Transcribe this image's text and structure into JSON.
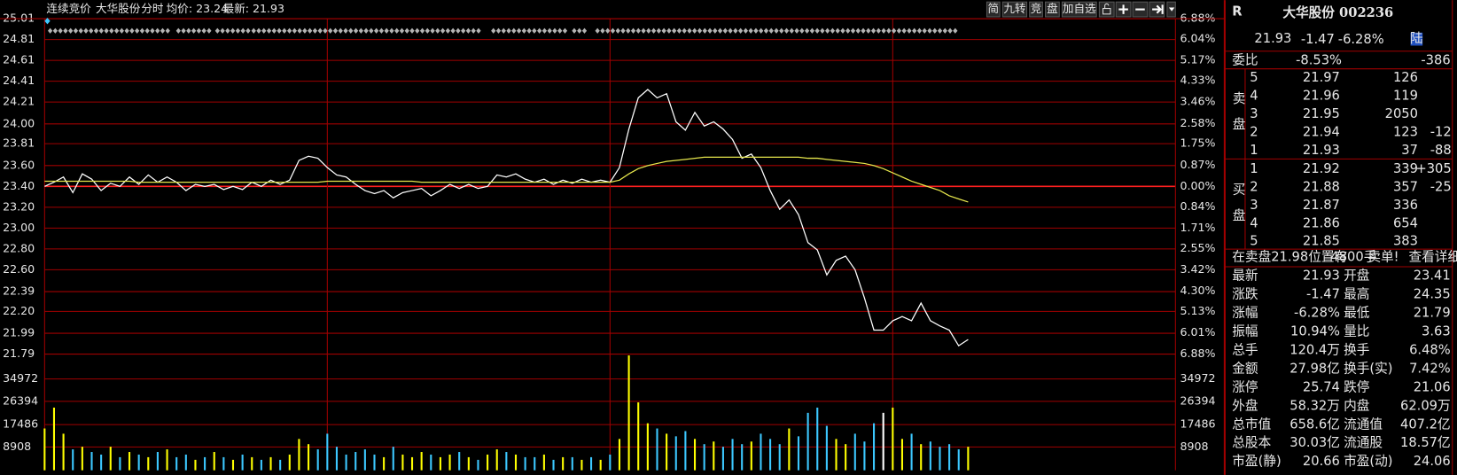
{
  "header": {
    "mode": "连续竞价",
    "name": "大华股份",
    "view": "分时",
    "avg": "均价: 23.24",
    "latest": "最新: 21.93"
  },
  "toolbar": {
    "buttons": [
      "简",
      "九转",
      "竞",
      "盘",
      "加自选"
    ]
  },
  "chart_data": [
    {
      "type": "line",
      "x": [
        0,
        2,
        4,
        6,
        8,
        10,
        12,
        14,
        16,
        18,
        20,
        22,
        24,
        26,
        28,
        30,
        32,
        34,
        36,
        38,
        40,
        42,
        44,
        46,
        48,
        50,
        52,
        54,
        56,
        58,
        60,
        62,
        64,
        66,
        68,
        70,
        72,
        74,
        76,
        78,
        80,
        82,
        84,
        86,
        88,
        90,
        92,
        94,
        96,
        98,
        100,
        102,
        104,
        106,
        108,
        110,
        112,
        114,
        116,
        118,
        120,
        122,
        124,
        126,
        128,
        130,
        132,
        134,
        136,
        138,
        140,
        142,
        144,
        146,
        148,
        150,
        152,
        154,
        156,
        158,
        160,
        162,
        164,
        166,
        168,
        170,
        172,
        174,
        176,
        178,
        180,
        182,
        184,
        186,
        188,
        190,
        192,
        194,
        196
      ],
      "xlim": [
        0,
        240
      ],
      "ylim": [
        21.79,
        25.01
      ],
      "yticks": [
        25.01,
        24.81,
        24.61,
        24.41,
        24.21,
        {
          "value": 24,
          "label": "24.00"
        },
        23.81,
        {
          "value": 23.6,
          "label": "23.60"
        },
        {
          "value": 23.4,
          "label": "23.40"
        },
        {
          "value": 23.2,
          "label": "23.20"
        },
        {
          "value": 23,
          "label": "23.00"
        },
        {
          "value": 22.8,
          "label": "22.80"
        },
        {
          "value": 22.6,
          "label": "22.60"
        },
        22.39,
        {
          "value": 22.2,
          "label": "22.20"
        },
        21.99,
        21.79
      ],
      "y2lim": [
        -6.88,
        6.88
      ],
      "y2ticks": [
        {
          "value": 6.88,
          "label": "6.88%"
        },
        {
          "value": 6.04,
          "label": "6.04%"
        },
        {
          "value": 5.17,
          "label": "5.17%"
        },
        {
          "value": 4.33,
          "label": "4.33%"
        },
        {
          "value": 3.46,
          "label": "3.46%"
        },
        {
          "value": 2.58,
          "label": "2.58%"
        },
        {
          "value": 1.75,
          "label": "1.75%"
        },
        {
          "value": 0.87,
          "label": "0.87%"
        },
        {
          "value": 0,
          "label": "0.00%"
        },
        {
          "value": -0.84,
          "label": "0.84%"
        },
        {
          "value": -1.71,
          "label": "1.71%"
        },
        {
          "value": -2.55,
          "label": "2.55%"
        },
        {
          "value": -3.42,
          "label": "3.42%"
        },
        {
          "value": -4.3,
          "label": "4.30%"
        },
        {
          "value": -5.13,
          "label": "5.13%"
        },
        {
          "value": -6.01,
          "label": "6.01%"
        },
        {
          "value": -6.88,
          "label": "6.88%"
        }
      ],
      "grid": true,
      "series": [
        {
          "color": "#ffffff",
          "values": [
            23.4,
            23.44,
            23.49,
            23.34,
            23.52,
            23.47,
            23.36,
            23.43,
            23.4,
            23.49,
            23.42,
            23.51,
            23.44,
            23.49,
            23.44,
            23.36,
            23.42,
            23.4,
            23.42,
            23.37,
            23.4,
            23.37,
            23.44,
            23.4,
            23.46,
            23.42,
            23.46,
            23.65,
            23.69,
            23.67,
            23.58,
            23.51,
            23.49,
            23.42,
            23.36,
            23.33,
            23.36,
            23.29,
            23.34,
            23.36,
            23.38,
            23.31,
            23.36,
            23.42,
            23.38,
            23.42,
            23.38,
            23.4,
            23.51,
            23.49,
            23.52,
            23.47,
            23.44,
            23.47,
            23.42,
            23.46,
            23.43,
            23.47,
            23.44,
            23.46,
            23.44,
            23.58,
            23.95,
            24.25,
            24.33,
            24.25,
            24.29,
            24.02,
            23.94,
            24.11,
            23.98,
            24.02,
            23.95,
            23.85,
            23.67,
            23.71,
            23.58,
            23.36,
            23.18,
            23.27,
            23.13,
            22.86,
            22.79,
            22.55,
            22.69,
            22.73,
            22.6,
            22.33,
            22.02,
            22.02,
            22.11,
            22.15,
            22.11,
            22.28,
            22.11,
            22.06,
            22.02,
            21.87,
            21.93
          ]
        },
        {
          "color": "#e6e64c",
          "values": [
            23.45,
            23.45,
            23.45,
            23.45,
            23.45,
            23.45,
            23.45,
            23.45,
            23.45,
            23.45,
            23.44,
            23.44,
            23.44,
            23.44,
            23.44,
            23.44,
            23.44,
            23.44,
            23.44,
            23.44,
            23.44,
            23.44,
            23.44,
            23.44,
            23.44,
            23.44,
            23.44,
            23.44,
            23.44,
            23.44,
            23.45,
            23.45,
            23.45,
            23.45,
            23.45,
            23.45,
            23.45,
            23.45,
            23.45,
            23.45,
            23.44,
            23.44,
            23.44,
            23.44,
            23.44,
            23.44,
            23.44,
            23.44,
            23.44,
            23.44,
            23.44,
            23.44,
            23.44,
            23.44,
            23.44,
            23.44,
            23.44,
            23.44,
            23.44,
            23.44,
            23.44,
            23.46,
            23.52,
            23.57,
            23.6,
            23.62,
            23.64,
            23.65,
            23.66,
            23.67,
            23.68,
            23.68,
            23.68,
            23.68,
            23.68,
            23.68,
            23.68,
            23.68,
            23.68,
            23.68,
            23.68,
            23.67,
            23.67,
            23.66,
            23.65,
            23.64,
            23.63,
            23.62,
            23.6,
            23.57,
            23.53,
            23.49,
            23.45,
            23.42,
            23.39,
            23.36,
            23.31,
            23.28,
            23.25
          ]
        }
      ]
    },
    {
      "type": "bar",
      "x": [
        0,
        2,
        4,
        6,
        8,
        10,
        12,
        14,
        16,
        18,
        20,
        22,
        24,
        26,
        28,
        30,
        32,
        34,
        36,
        38,
        40,
        42,
        44,
        46,
        48,
        50,
        52,
        54,
        56,
        58,
        60,
        62,
        64,
        66,
        68,
        70,
        72,
        74,
        76,
        78,
        80,
        82,
        84,
        86,
        88,
        90,
        92,
        94,
        96,
        98,
        100,
        102,
        104,
        106,
        108,
        110,
        112,
        114,
        116,
        118,
        120,
        122,
        124,
        126,
        128,
        130,
        132,
        134,
        136,
        138,
        140,
        142,
        144,
        146,
        148,
        150,
        152,
        154,
        156,
        158,
        160,
        162,
        164,
        166,
        168,
        170,
        172,
        174,
        176,
        178,
        180,
        182,
        184,
        186,
        188,
        190,
        192,
        194,
        196
      ],
      "xlim": [
        0,
        240
      ],
      "ylim": [
        0,
        44500
      ],
      "yticks": [
        8908,
        17486,
        26394,
        34972
      ],
      "values": [
        16000,
        24000,
        14000,
        8000,
        9000,
        7000,
        6000,
        9000,
        5000,
        7000,
        6000,
        5000,
        7000,
        8000,
        5000,
        6000,
        4000,
        5000,
        7000,
        5000,
        4000,
        6000,
        5000,
        4000,
        5000,
        4000,
        6000,
        12000,
        10000,
        8000,
        14000,
        9000,
        6000,
        7000,
        8000,
        6000,
        5000,
        9000,
        6000,
        5000,
        7000,
        6000,
        5000,
        6000,
        7000,
        5000,
        4000,
        6000,
        8000,
        7000,
        6000,
        5000,
        5000,
        6000,
        4000,
        5000,
        5000,
        4000,
        5000,
        4000,
        6000,
        12000,
        44000,
        26000,
        18000,
        16000,
        14000,
        13000,
        15000,
        12000,
        10000,
        11000,
        9000,
        12000,
        10000,
        11000,
        14000,
        12000,
        10000,
        16000,
        13000,
        22000,
        24000,
        17000,
        12000,
        10000,
        14000,
        11000,
        18000,
        22000,
        24000,
        12000,
        14000,
        10000,
        11000,
        9000,
        10000,
        8000,
        9000
      ]
    }
  ],
  "quote_panel": {
    "marker": "R",
    "title": "大华股份 002236",
    "price": "21.93",
    "change": "-1.47",
    "change_pct": "-6.28%",
    "badge": "陆",
    "ratio": {
      "label": "委比",
      "pct": "-8.53%",
      "diff": "-386"
    },
    "sell_label": "卖盘",
    "buy_label": "买盘",
    "sell": [
      {
        "level": "5",
        "price": "21.97",
        "volume": "126"
      },
      {
        "level": "4",
        "price": "21.96",
        "volume": "119"
      },
      {
        "level": "3",
        "price": "21.95",
        "volume": "2050"
      },
      {
        "level": "2",
        "price": "21.94",
        "volume": "123",
        "delta": "-12"
      },
      {
        "level": "1",
        "price": "21.93",
        "volume": "37",
        "delta": "-88"
      }
    ],
    "buy": [
      {
        "level": "1",
        "price": "21.92",
        "volume": "339",
        "delta": "+305"
      },
      {
        "level": "2",
        "price": "21.88",
        "volume": "357",
        "delta": "-25"
      },
      {
        "level": "3",
        "price": "21.87",
        "volume": "336"
      },
      {
        "level": "4",
        "price": "21.86",
        "volume": "654"
      },
      {
        "level": "5",
        "price": "21.85",
        "volume": "383"
      }
    ],
    "notice": {
      "text": "在卖盘21.98位置有",
      "amount": "4800手",
      "alert": "卖单!",
      "link": "查看详细"
    },
    "stats": [
      [
        {
          "label": "最新",
          "value": "21.93",
          "color": "#00e600"
        },
        {
          "label": "开盘",
          "value": "23.41",
          "color": "#ff3232"
        }
      ],
      [
        {
          "label": "涨跌",
          "value": "-1.47",
          "color": "#00e600"
        },
        {
          "label": "最高",
          "value": "24.35",
          "color": "#ff3232"
        }
      ],
      [
        {
          "label": "涨幅",
          "value": "-6.28%",
          "color": "#00e600"
        },
        {
          "label": "最低",
          "value": "21.79",
          "color": "#00e600"
        }
      ],
      [
        {
          "label": "振幅",
          "value": "10.94%",
          "color": "#3cc8ff"
        },
        {
          "label": "量比",
          "value": "3.63",
          "color": "#ff3232"
        }
      ],
      [
        {
          "label": "总手",
          "value": "120.4万",
          "color": "#3cc8ff"
        },
        {
          "label": "换手",
          "value": "6.48%",
          "color": "#3cc8ff"
        }
      ],
      [
        {
          "label": "金额",
          "value": "27.98亿",
          "color": "#3cc8ff"
        },
        {
          "label": "换手(实)",
          "value": "7.42%",
          "color": "#3cc8ff"
        }
      ],
      [
        {
          "label": "涨停",
          "value": "25.74",
          "color": "#ff3232"
        },
        {
          "label": "跌停",
          "value": "21.06",
          "color": "#00e600"
        }
      ],
      [
        {
          "label": "外盘",
          "value": "58.32万",
          "color": "#ff3232"
        },
        {
          "label": "内盘",
          "value": "62.09万",
          "color": "#00e600"
        }
      ],
      [
        {
          "label": "总市值",
          "value": "658.6亿",
          "color": "#3cc8ff"
        },
        {
          "label": "流通值",
          "value": "407.2亿",
          "color": "#3cc8ff"
        }
      ],
      [
        {
          "label": "总股本",
          "value": "30.03亿",
          "color": "#3cc8ff"
        },
        {
          "label": "流通股",
          "value": "18.57亿",
          "color": "#3cc8ff"
        }
      ],
      [
        {
          "label": "市盈(静)",
          "value": "20.66",
          "color": "#e6e6e6"
        },
        {
          "label": "市盈(动)",
          "value": "24.06",
          "color": "#e6e6e6"
        }
      ]
    ]
  }
}
